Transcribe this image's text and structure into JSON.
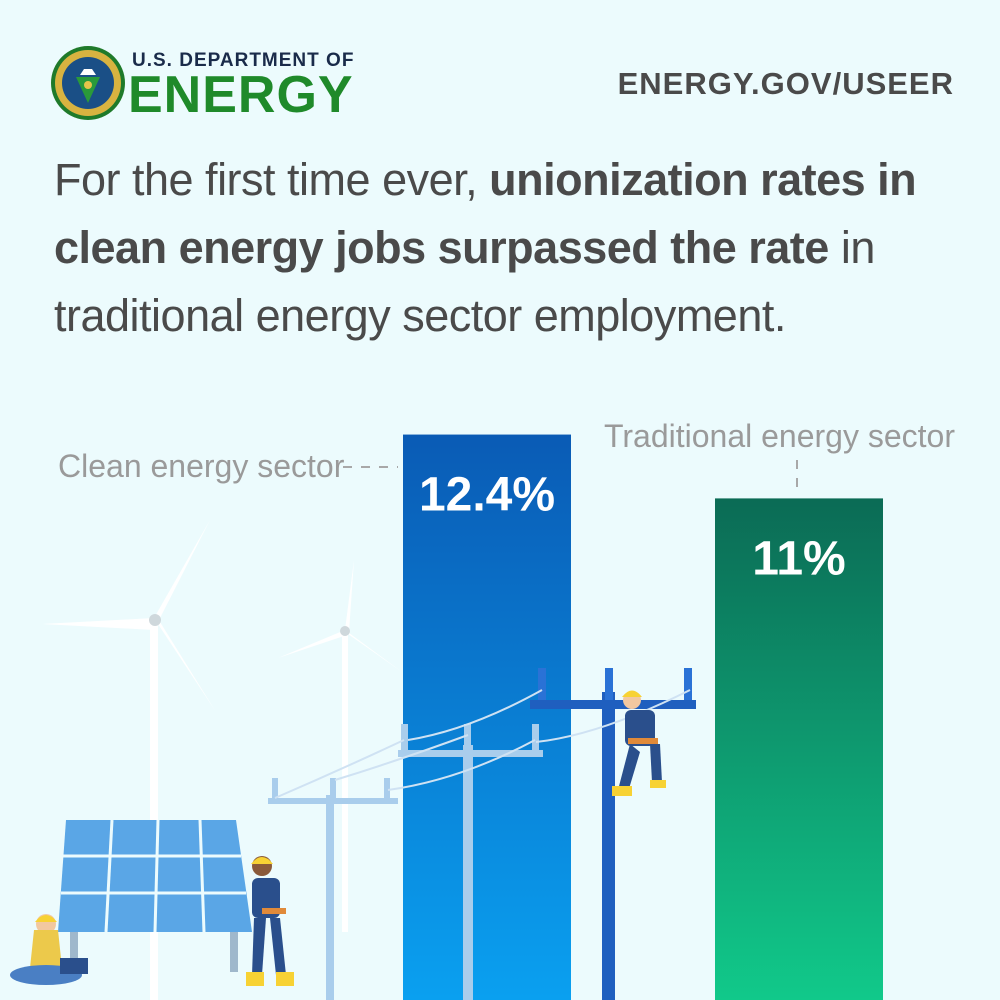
{
  "header": {
    "org_line1": "U.S. DEPARTMENT OF",
    "org_line2": "ENERGY",
    "seal_text": "DEPARTMENT OF ENERGY · UNITED STATES OF AMERICA",
    "url": "ENERGY.GOV/USEER"
  },
  "headline": {
    "part1": "For the first time ever, ",
    "bold": "unionization rates in clean energy jobs surpassed the rate",
    "part2": " in traditional energy sector employment."
  },
  "colors": {
    "background": "#ecfbfd",
    "clean_top": "#0a5bb5",
    "clean_bottom": "#0aa0f0",
    "traditional_top": "#0b6b55",
    "traditional_bottom": "#11c98a",
    "brand_green": "#1f8a2a",
    "text_gray": "#4a4a4a"
  },
  "chart_data": {
    "type": "bar",
    "categories": [
      "Clean energy sector",
      "Traditional energy sector"
    ],
    "values": [
      12.4,
      11
    ],
    "value_labels": [
      "12.4%",
      "11%"
    ],
    "unit": "%",
    "title": "",
    "xlabel": "",
    "ylabel": "",
    "grid": false,
    "legend": "none"
  },
  "illustration": {
    "icons": [
      "wind-turbine-icon",
      "solar-panel-icon",
      "power-pole-icon",
      "lineworker-icon",
      "worker-icon",
      "laptop-worker-icon"
    ]
  }
}
